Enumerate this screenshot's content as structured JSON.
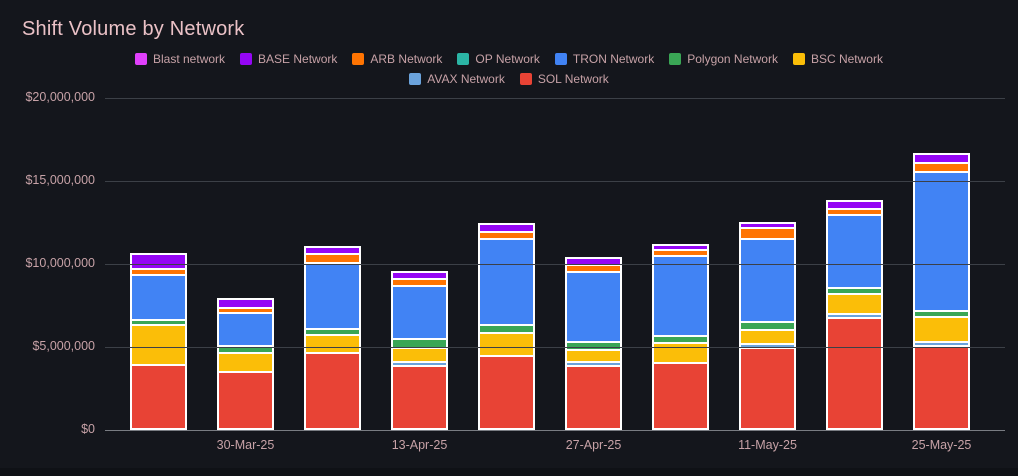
{
  "title": "Shift Volume by Network",
  "colors": {
    "background": "#14161c",
    "grid": "#3c4047",
    "zero_line": "#797c82",
    "title_text": "#eac1c6",
    "axis_text": "#c7a2a7",
    "bar_border": "#ffffff"
  },
  "legend": {
    "items": [
      {
        "label": "Blast network",
        "color": "#e040fb"
      },
      {
        "label": "BASE Network",
        "color": "#9506f5"
      },
      {
        "label": "ARB Network",
        "color": "#ff7402"
      },
      {
        "label": "OP Network",
        "color": "#2bb5a5"
      },
      {
        "label": "TRON Network",
        "color": "#4183f4"
      },
      {
        "label": "Polygon Network",
        "color": "#3aa655"
      },
      {
        "label": "BSC Network",
        "color": "#fbbe08"
      },
      {
        "label": "AVAX Network",
        "color": "#6ba3dc"
      },
      {
        "label": "SOL Network",
        "color": "#e84335"
      }
    ]
  },
  "y_axis": {
    "tick_labels": [
      "$20,000,000",
      "$15,000,000",
      "$10,000,000",
      "$5,000,000",
      "$0"
    ],
    "tick_values": [
      20000000,
      15000000,
      10000000,
      5000000,
      0
    ],
    "min": 0,
    "max": 20000000
  },
  "x_axis": {
    "tick_labels": [
      "30-Mar-25",
      "13-Apr-25",
      "27-Apr-25",
      "11-May-25",
      "25-May-25"
    ]
  },
  "chart_data": {
    "type": "bar",
    "stacked": true,
    "title": "Shift Volume by Network",
    "xlabel": "",
    "ylabel": "",
    "ylim": [
      0,
      20000000
    ],
    "grid": true,
    "legend_position": "top-center",
    "bar_count": 10,
    "categories": [
      "",
      "30-Mar-25",
      "",
      "13-Apr-25",
      "",
      "27-Apr-25",
      "",
      "11-May-25",
      "",
      "25-May-25"
    ],
    "x_tick_under_bar_indices": [
      1,
      3,
      5,
      7,
      9
    ],
    "stack_order_bottom_to_top": [
      "SOL Network",
      "AVAX Network",
      "BSC Network",
      "Polygon Network",
      "TRON Network",
      "OP Network",
      "ARB Network",
      "BASE Network",
      "Blast network"
    ],
    "series": [
      {
        "name": "Blast network",
        "color": "#e040fb",
        "values": [
          0,
          0,
          0,
          0,
          0,
          0,
          0,
          0,
          0,
          0
        ]
      },
      {
        "name": "BASE Network",
        "color": "#9506f5",
        "values": [
          930000,
          550000,
          450000,
          400000,
          500000,
          400000,
          300000,
          300000,
          500000,
          550000
        ]
      },
      {
        "name": "ARB Network",
        "color": "#ff7402",
        "values": [
          360000,
          300000,
          550000,
          450000,
          400000,
          400000,
          350000,
          650000,
          350000,
          550000
        ]
      },
      {
        "name": "OP Network",
        "color": "#2bb5a5",
        "values": [
          0,
          0,
          0,
          0,
          0,
          0,
          0,
          0,
          0,
          0
        ]
      },
      {
        "name": "TRON Network",
        "color": "#4183f4",
        "values": [
          2700000,
          2000000,
          3950000,
          3200000,
          5200000,
          4200000,
          4800000,
          5000000,
          4400000,
          8400000
        ]
      },
      {
        "name": "Polygon Network",
        "color": "#3aa655",
        "values": [
          320000,
          400000,
          350000,
          550000,
          500000,
          500000,
          450000,
          500000,
          350000,
          350000
        ]
      },
      {
        "name": "BSC Network",
        "color": "#fbbe08",
        "values": [
          2400000,
          1150000,
          1100000,
          850000,
          1400000,
          750000,
          1200000,
          850000,
          1200000,
          1500000
        ]
      },
      {
        "name": "AVAX Network",
        "color": "#6ba3dc",
        "values": [
          0,
          0,
          0,
          150000,
          0,
          200000,
          0,
          200000,
          200000,
          150000
        ]
      },
      {
        "name": "SOL Network",
        "color": "#e84335",
        "values": [
          3850000,
          3450000,
          4600000,
          3800000,
          4400000,
          3800000,
          4000000,
          4900000,
          6700000,
          5000000
        ]
      }
    ]
  }
}
